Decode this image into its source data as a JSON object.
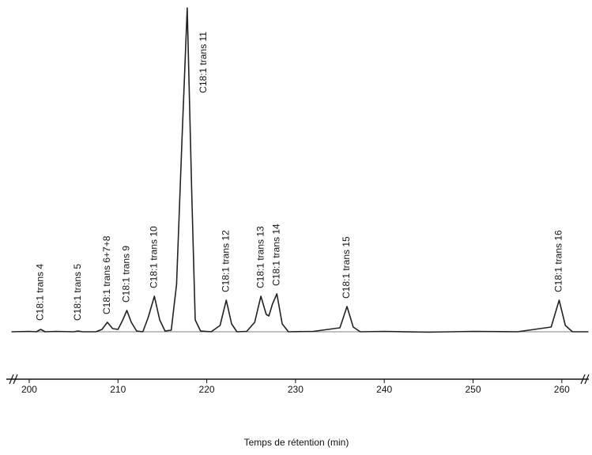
{
  "chart_data": {
    "type": "line",
    "color": "#222",
    "x_label": "Temps de rétention (min)",
    "x": [
      198,
      200,
      200.8,
      201.3,
      201.8,
      203,
      205,
      205.5,
      206,
      207.5,
      208.2,
      208.8,
      209.4,
      210,
      210.5,
      211.0,
      211.5,
      212.1,
      212.8,
      213.4,
      214.1,
      214.7,
      215.3,
      216,
      216.6,
      217.2,
      217.8,
      218.3,
      218.7,
      219.3,
      220.5,
      221.5,
      222.2,
      222.8,
      223.4,
      224.5,
      225.4,
      226.1,
      226.7,
      227.0,
      227.4,
      227.9,
      228.5,
      229.2,
      232,
      235,
      235.8,
      236.5,
      237.3,
      240,
      245,
      250,
      255,
      258.8,
      259.7,
      260.4,
      261.2,
      263
    ],
    "values": [
      0,
      0.5,
      0,
      3,
      0,
      0.5,
      0,
      1,
      0,
      0,
      3,
      12,
      4,
      3,
      14,
      27,
      12,
      1,
      0,
      18,
      45,
      15,
      1,
      2,
      60,
      240,
      410,
      180,
      15,
      1,
      0,
      8,
      40,
      10,
      0,
      0.5,
      12,
      45,
      22,
      20,
      35,
      48,
      10,
      0,
      0.5,
      5,
      32,
      6,
      0,
      0.5,
      -0.5,
      0.5,
      0,
      6,
      40,
      8,
      0,
      0
    ],
    "xlim": [
      198,
      263
    ],
    "ylim": [
      0,
      415
    ],
    "xticks": [
      200,
      210,
      220,
      230,
      240,
      250,
      260
    ],
    "annotations": [
      {
        "text": "C18:1 trans 4",
        "x": 201.3
      },
      {
        "text": "C18:1 trans 5",
        "x": 205.5
      },
      {
        "text": "C18:1 trans 6+7+8",
        "x": 208.8
      },
      {
        "text": "C18:1 trans 9",
        "x": 211.0
      },
      {
        "text": "C18:1 trans 10",
        "x": 214.1
      },
      {
        "text": "C18:1 trans 11",
        "x": 217.8
      },
      {
        "text": "C18:1 trans 12",
        "x": 222.2
      },
      {
        "text": "C18:1 trans 13",
        "x": 226.1
      },
      {
        "text": "C18:1 trans 14",
        "x": 227.9
      },
      {
        "text": "C18:1 trans 15",
        "x": 235.8
      },
      {
        "text": "C18:1 trans 16",
        "x": 259.7
      }
    ]
  }
}
